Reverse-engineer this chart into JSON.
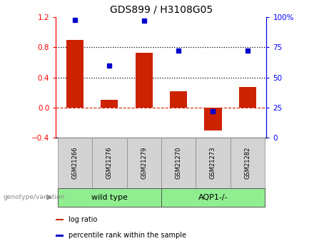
{
  "title": "GDS899 / H3108G05",
  "categories": [
    "GSM21266",
    "GSM21276",
    "GSM21279",
    "GSM21270",
    "GSM21273",
    "GSM21282"
  ],
  "log_ratio": [
    0.9,
    0.1,
    0.73,
    0.22,
    -0.3,
    0.27
  ],
  "percentile_rank": [
    98,
    60,
    97,
    72,
    22,
    72
  ],
  "group1_label": "wild type",
  "group2_label": "AQP1-/-",
  "group1_color": "#90EE90",
  "group2_color": "#90EE90",
  "bar_color": "#cc2200",
  "dot_color": "#0000cc",
  "ylim_left": [
    -0.4,
    1.2
  ],
  "ylim_right": [
    0,
    100
  ],
  "yticks_left": [
    -0.4,
    0.0,
    0.4,
    0.8,
    1.2
  ],
  "yticks_right": [
    0,
    25,
    50,
    75,
    100
  ],
  "hline_y": [
    0.4,
    0.8
  ],
  "title_fontsize": 10,
  "legend_items": [
    "log ratio",
    "percentile rank within the sample"
  ],
  "legend_colors": [
    "#cc2200",
    "#0000cc"
  ],
  "genotype_label": "genotype/variation",
  "bar_width": 0.5
}
